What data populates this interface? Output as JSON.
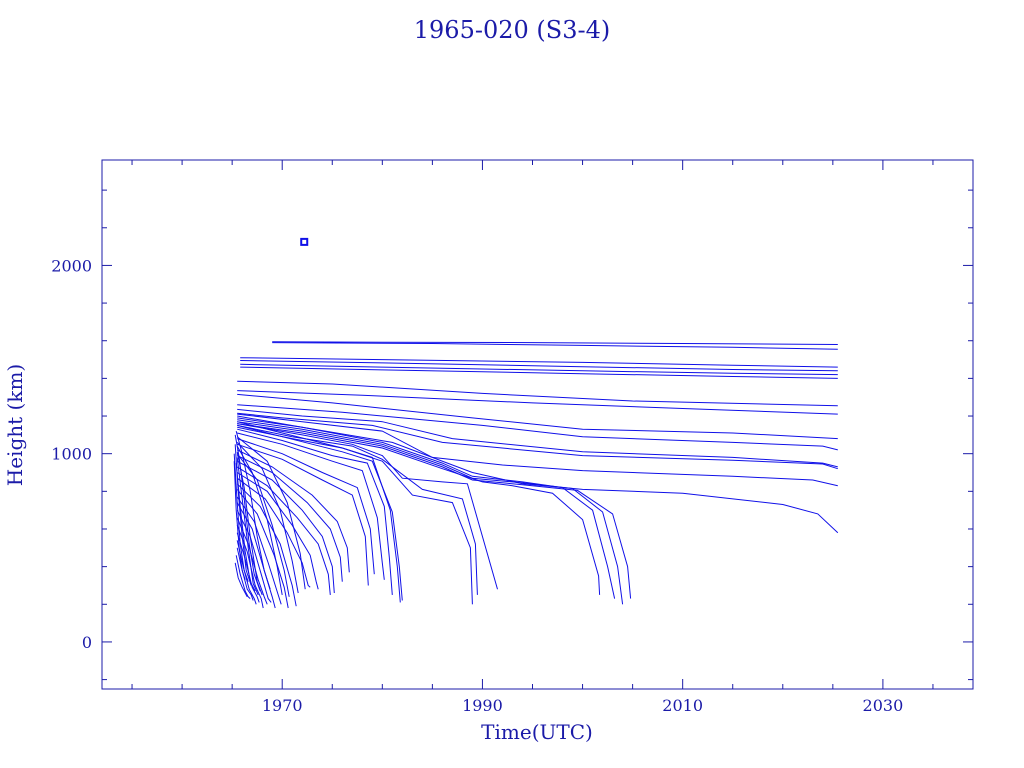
{
  "chart_data": {
    "type": "line",
    "title": "1965-020 (S3-4)",
    "xlabel": "Time(UTC)",
    "ylabel": "Height (km)",
    "xlim": [
      1952,
      2039
    ],
    "ylim": [
      -250,
      2560
    ],
    "xticks": [
      1970,
      1990,
      2010,
      2030
    ],
    "yticks": [
      0,
      1000,
      2000
    ],
    "grid": false,
    "colors": {
      "axis": "#1b1ba8",
      "series": "#1010e8"
    },
    "marker": {
      "x": 1972.2,
      "y": 2125
    },
    "series": [
      {
        "x": [
          1969.0,
          1980,
          1995,
          2010,
          2025.5
        ],
        "y": [
          1595,
          1592,
          1590,
          1585,
          1580
        ]
      },
      {
        "x": [
          1969.0,
          1985,
          2000,
          2015,
          2025.5
        ],
        "y": [
          1590,
          1585,
          1575,
          1565,
          1555
        ]
      },
      {
        "x": [
          1965.8,
          1980,
          2000,
          2015,
          2025.5
        ],
        "y": [
          1510,
          1500,
          1485,
          1470,
          1460
        ]
      },
      {
        "x": [
          1965.8,
          1980,
          2000,
          2015,
          2025.5
        ],
        "y": [
          1495,
          1482,
          1462,
          1447,
          1440
        ]
      },
      {
        "x": [
          1965.8,
          1980,
          2000,
          2015,
          2025.5
        ],
        "y": [
          1475,
          1460,
          1440,
          1427,
          1420
        ]
      },
      {
        "x": [
          1965.8,
          1980,
          2000,
          2015,
          2025.5
        ],
        "y": [
          1460,
          1445,
          1425,
          1410,
          1400
        ]
      },
      {
        "x": [
          1965.5,
          1975,
          1990,
          2005,
          2025.5
        ],
        "y": [
          1385,
          1370,
          1320,
          1280,
          1255
        ]
      },
      {
        "x": [
          1965.5,
          1978,
          1995,
          2010,
          2025.5
        ],
        "y": [
          1335,
          1310,
          1270,
          1240,
          1210
        ]
      },
      {
        "x": [
          1965.5,
          1975,
          1989,
          2000,
          2015,
          2025.5
        ],
        "y": [
          1315,
          1270,
          1190,
          1130,
          1110,
          1080
        ]
      },
      {
        "x": [
          1965.5,
          1976,
          1990,
          2000,
          2015,
          2024,
          2025.5
        ],
        "y": [
          1260,
          1220,
          1150,
          1090,
          1060,
          1040,
          1020
        ]
      },
      {
        "x": [
          1965.5,
          1972,
          1980,
          1987,
          2000,
          2015,
          2024,
          2025.5
        ],
        "y": [
          1235,
          1200,
          1170,
          1080,
          1010,
          980,
          950,
          930
        ]
      },
      {
        "x": [
          1965.5,
          1970,
          1979,
          1986,
          2000,
          2015,
          2024,
          2025.5
        ],
        "y": [
          1215,
          1190,
          1150,
          1060,
          990,
          965,
          945,
          920
        ]
      },
      {
        "x": [
          1965.5,
          1972,
          1980,
          1985,
          1992,
          2000,
          2015,
          2023,
          2025.5
        ],
        "y": [
          1210,
          1170,
          1120,
          980,
          940,
          910,
          880,
          860,
          830
        ]
      },
      {
        "x": [
          1965.5,
          1972,
          1981,
          1989,
          1994,
          2000,
          2010,
          2020,
          2023.5,
          2025.5
        ],
        "y": [
          1200,
          1140,
          1060,
          900,
          840,
          810,
          790,
          730,
          680,
          580
        ]
      },
      {
        "x": [
          1965.5,
          1972,
          1980,
          1986,
          1989,
          1994,
          1998,
          2001,
          2002.5,
          2003.2
        ],
        "y": [
          1190,
          1140,
          1060,
          950,
          880,
          850,
          820,
          700,
          400,
          230
        ]
      },
      {
        "x": [
          1965.5,
          1972,
          1980,
          1986,
          1989,
          1994,
          1999,
          2002,
          2003.5,
          2004.0
        ],
        "y": [
          1180,
          1130,
          1050,
          940,
          870,
          845,
          815,
          690,
          400,
          200
        ]
      },
      {
        "x": [
          1965.5,
          1972,
          1980,
          1986,
          1989,
          1994,
          1999.5,
          2003,
          2004.5,
          2004.8
        ],
        "y": [
          1170,
          1120,
          1040,
          930,
          860,
          835,
          805,
          680,
          400,
          230
        ]
      },
      {
        "x": [
          1965.5,
          1972,
          1980,
          1986,
          1990,
          1993,
          1997,
          2000,
          2001.6,
          2001.7
        ],
        "y": [
          1160,
          1110,
          1030,
          920,
          850,
          830,
          790,
          650,
          350,
          250
        ]
      },
      {
        "x": [
          1965.5,
          1972,
          1977,
          1980,
          1982,
          1986,
          1988.5,
          1991.5
        ],
        "y": [
          1160,
          1100,
          1050,
          990,
          870,
          850,
          840,
          280
        ]
      },
      {
        "x": [
          1965.5,
          1971,
          1977,
          1980,
          1984,
          1988,
          1989.3,
          1989.5
        ],
        "y": [
          1150,
          1090,
          1040,
          970,
          810,
          760,
          520,
          250
        ]
      },
      {
        "x": [
          1965.5,
          1971,
          1976,
          1980,
          1983,
          1987,
          1988.8,
          1989.0
        ],
        "y": [
          1140,
          1080,
          1030,
          960,
          780,
          740,
          500,
          200
        ]
      },
      {
        "x": [
          1965.5,
          1970,
          1976,
          1979,
          1980.8,
          1981.5,
          1981.8
        ],
        "y": [
          1170,
          1110,
          1030,
          980,
          700,
          400,
          210
        ]
      },
      {
        "x": [
          1965.5,
          1970,
          1976,
          1979,
          1981,
          1981.7,
          1982.0
        ],
        "y": [
          1150,
          1090,
          1010,
          960,
          690,
          400,
          220
        ]
      },
      {
        "x": [
          1965.5,
          1970,
          1975,
          1978.5,
          1980.2,
          1980.7,
          1981.0
        ],
        "y": [
          1130,
          1070,
          990,
          950,
          720,
          450,
          250
        ]
      },
      {
        "x": [
          1965.5,
          1970,
          1975,
          1978,
          1979.5,
          1980.0,
          1980.2
        ],
        "y": [
          1110,
          1050,
          960,
          910,
          660,
          420,
          330
        ]
      },
      {
        "x": [
          1965.5,
          1970,
          1974,
          1977.5,
          1978.8,
          1979.2
        ],
        "y": [
          1080,
          1000,
          900,
          820,
          600,
          360
        ]
      },
      {
        "x": [
          1965.5,
          1970,
          1974,
          1977,
          1978.3,
          1978.6
        ],
        "y": [
          1050,
          970,
          860,
          780,
          560,
          300
        ]
      },
      {
        "x": [
          1965.5,
          1969,
          1973,
          1975.5,
          1976.5,
          1976.7
        ],
        "y": [
          1020,
          930,
          780,
          640,
          500,
          370
        ]
      },
      {
        "x": [
          1965.5,
          1969,
          1972.5,
          1974.8,
          1975.8,
          1976.0
        ],
        "y": [
          990,
          900,
          740,
          600,
          450,
          320
        ]
      },
      {
        "x": [
          1965.5,
          1969,
          1972,
          1974.0,
          1975.0,
          1975.2
        ],
        "y": [
          960,
          860,
          700,
          560,
          400,
          260
        ]
      },
      {
        "x": [
          1965.5,
          1968.5,
          1971.5,
          1973.6,
          1974.6,
          1974.8
        ],
        "y": [
          930,
          830,
          660,
          520,
          360,
          250
        ]
      },
      {
        "x": [
          1965.5,
          1968.5,
          1971,
          1972.8,
          1973.4,
          1973.6
        ],
        "y": [
          900,
          800,
          620,
          460,
          320,
          280
        ]
      },
      {
        "x": [
          1965.5,
          1968.3,
          1970.5,
          1972.0,
          1972.6,
          1972.8
        ],
        "y": [
          870,
          760,
          580,
          420,
          300,
          290
        ]
      },
      {
        "x": [
          1965.5,
          1967.8,
          1969.8,
          1971.0,
          1971.4
        ],
        "y": [
          840,
          720,
          520,
          300,
          190
        ]
      },
      {
        "x": [
          1965.5,
          1967.5,
          1969.2,
          1970.2,
          1970.6
        ],
        "y": [
          810,
          680,
          460,
          290,
          180
        ]
      },
      {
        "x": [
          1965.5,
          1967.2,
          1968.6,
          1969.6,
          1969.9
        ],
        "y": [
          770,
          640,
          420,
          250,
          200
        ]
      },
      {
        "x": [
          1965.5,
          1967.0,
          1968.2,
          1969.0,
          1969.3
        ],
        "y": [
          740,
          600,
          380,
          240,
          180
        ]
      },
      {
        "x": [
          1965.5,
          1966.8,
          1967.9,
          1968.6,
          1968.9
        ],
        "y": [
          700,
          560,
          360,
          230,
          210
        ]
      },
      {
        "x": [
          1965.5,
          1966.6,
          1967.6,
          1968.2,
          1968.5
        ],
        "y": [
          660,
          520,
          330,
          240,
          200
        ]
      },
      {
        "x": [
          1965.5,
          1966.5,
          1967.3,
          1967.9,
          1968.1
        ],
        "y": [
          620,
          480,
          300,
          230,
          180
        ]
      },
      {
        "x": [
          1965.5,
          1966.3,
          1967.0,
          1967.5,
          1967.7
        ],
        "y": [
          580,
          440,
          290,
          240,
          210
        ]
      },
      {
        "x": [
          1965.5,
          1966.1,
          1966.7,
          1967.2,
          1967.4
        ],
        "y": [
          540,
          400,
          280,
          230,
          200
        ]
      },
      {
        "x": [
          1965.5,
          1966.0,
          1966.5,
          1966.9,
          1967.1
        ],
        "y": [
          500,
          380,
          280,
          250,
          220
        ]
      },
      {
        "x": [
          1965.4,
          1965.8,
          1966.3,
          1966.6,
          1966.8
        ],
        "y": [
          460,
          360,
          270,
          240,
          230
        ]
      },
      {
        "x": [
          1965.3,
          1965.6,
          1966.0,
          1966.3,
          1966.5
        ],
        "y": [
          420,
          340,
          290,
          260,
          240
        ]
      },
      {
        "x": [
          1965.5,
          1967.0,
          1968.5,
          1969.5,
          1970.0
        ],
        "y": [
          1040,
          900,
          650,
          400,
          250
        ]
      },
      {
        "x": [
          1965.5,
          1967.5,
          1969.0,
          1970.2,
          1970.7
        ],
        "y": [
          1000,
          860,
          620,
          380,
          240
        ]
      },
      {
        "x": [
          1965.5,
          1968.0,
          1969.8,
          1971.0,
          1971.6
        ],
        "y": [
          1060,
          920,
          700,
          430,
          260
        ]
      },
      {
        "x": [
          1965.5,
          1968.5,
          1970.5,
          1971.8,
          1972.3
        ],
        "y": [
          1090,
          960,
          740,
          470,
          280
        ]
      },
      {
        "x": [
          1965.5,
          1966.2,
          1966.8,
          1967.5,
          1968.0
        ],
        "y": [
          1010,
          820,
          560,
          320,
          250
        ]
      },
      {
        "x": [
          1965.5,
          1966.0,
          1966.6,
          1967.1,
          1967.6
        ],
        "y": [
          980,
          760,
          500,
          310,
          250
        ]
      },
      {
        "x": [
          1965.4,
          1965.8,
          1966.3,
          1966.8,
          1967.3
        ],
        "y": [
          950,
          720,
          480,
          320,
          270
        ]
      },
      {
        "x": [
          1965.3,
          1965.6,
          1966.0,
          1966.4,
          1966.9
        ],
        "y": [
          1050,
          800,
          560,
          380,
          300
        ]
      },
      {
        "x": [
          1965.2,
          1965.5,
          1965.8,
          1966.2,
          1966.6
        ],
        "y": [
          1000,
          740,
          520,
          380,
          320
        ]
      },
      {
        "x": [
          1965.2,
          1965.4,
          1965.7,
          1966.0,
          1966.3
        ],
        "y": [
          960,
          700,
          500,
          380,
          330
        ]
      },
      {
        "x": [
          1965.3,
          1965.7,
          1966.2,
          1966.7,
          1967.2,
          1967.8
        ],
        "y": [
          1100,
          980,
          760,
          520,
          360,
          270
        ]
      },
      {
        "x": [
          1965.4,
          1966.0,
          1966.8,
          1967.5,
          1968.2,
          1968.8
        ],
        "y": [
          1120,
          1000,
          800,
          560,
          380,
          280
        ]
      }
    ]
  }
}
